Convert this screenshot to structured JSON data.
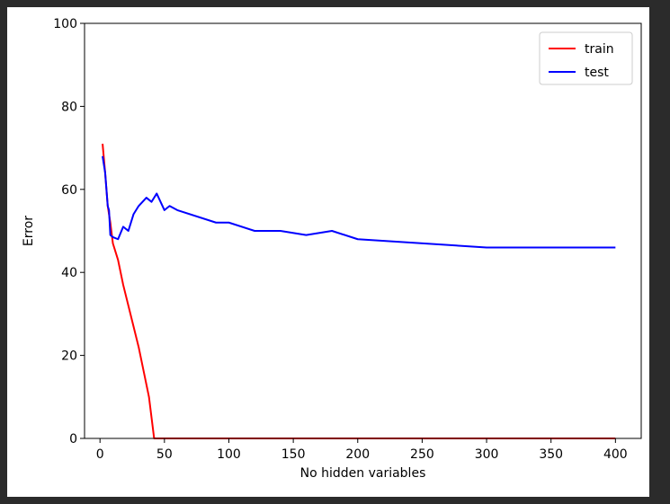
{
  "chart_data": {
    "type": "line",
    "title": "",
    "xlabel": "No hidden variables",
    "ylabel": "Error",
    "xlim": [
      -12,
      420
    ],
    "ylim": [
      0,
      100
    ],
    "xticks": [
      0,
      50,
      100,
      150,
      200,
      250,
      300,
      350,
      400
    ],
    "yticks": [
      0,
      20,
      40,
      60,
      80,
      100
    ],
    "grid": false,
    "legend_position": "top-right",
    "series": [
      {
        "name": "train",
        "color": "#ff0000",
        "x": [
          2,
          4,
          6,
          8,
          10,
          14,
          18,
          22,
          26,
          30,
          34,
          38,
          40,
          42,
          44,
          46,
          50,
          60,
          80,
          100,
          150,
          200,
          250,
          300,
          350,
          400
        ],
        "y": [
          71,
          64,
          56,
          52,
          47,
          43,
          37,
          32,
          27,
          22,
          16,
          10,
          5,
          0,
          0,
          0,
          0,
          0,
          0,
          0,
          0,
          0,
          0,
          0,
          0,
          0
        ]
      },
      {
        "name": "test",
        "color": "#0000ff",
        "x": [
          2,
          4,
          6,
          7,
          8,
          10,
          14,
          18,
          22,
          26,
          30,
          36,
          40,
          44,
          50,
          54,
          60,
          90,
          100,
          120,
          140,
          160,
          180,
          200,
          300,
          400
        ],
        "y": [
          68,
          64,
          56,
          55,
          49,
          48.5,
          48,
          51,
          50,
          54,
          56,
          58,
          57,
          59,
          55,
          56,
          55,
          52,
          52,
          50,
          50,
          49,
          50,
          48,
          46,
          46
        ]
      }
    ]
  }
}
